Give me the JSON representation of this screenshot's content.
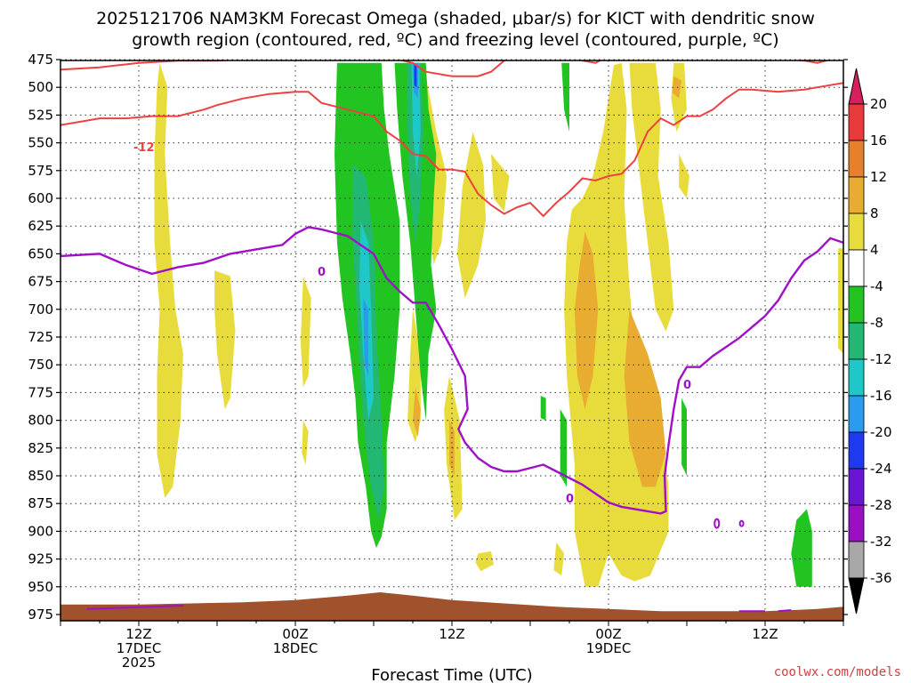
{
  "chart_data": {
    "type": "contour-timeheight",
    "title_line1": "2025121706 NAM3KM Forecast Omega (shaded, μbar/s) for KICT with dendritic snow",
    "title_line2": "growth region (contoured, red, ºC) and freezing level (contoured, purple, ºC)",
    "xlabel": "Forecast Time (UTC)",
    "credit": "coolwx.com/models",
    "y_axis": {
      "units": "hPa",
      "ticks": [
        "475",
        "500",
        "525",
        "550",
        "575",
        "600",
        "625",
        "650",
        "675",
        "700",
        "725",
        "750",
        "775",
        "800",
        "825",
        "850",
        "875",
        "900",
        "925",
        "950",
        "975"
      ],
      "ylim": [
        475,
        980
      ]
    },
    "x_axis": {
      "range_hours": [
        0,
        60
      ],
      "ticks": [
        {
          "hour": 6,
          "lines": [
            "12Z",
            "17DEC",
            "2025"
          ]
        },
        {
          "hour": 18,
          "lines": [
            "00Z",
            "18DEC"
          ]
        },
        {
          "hour": 30,
          "lines": [
            "12Z"
          ]
        },
        {
          "hour": 42,
          "lines": [
            "00Z",
            "19DEC"
          ]
        },
        {
          "hour": 54,
          "lines": [
            "12Z"
          ]
        }
      ]
    },
    "colorbar": {
      "labels": [
        "20",
        "16",
        "12",
        "8",
        "4",
        "-4",
        "-8",
        "-12",
        "-16",
        "-20",
        "-24",
        "-28",
        "-32",
        "-36"
      ],
      "colors": {
        "c20": "#d81f5e",
        "c16": "#e83a3a",
        "c12": "#e6802a",
        "c8": "#e8ac30",
        "c4": "#e8dc3c",
        "white": "#ffffff",
        "g4": "#22c422",
        "g8": "#22b874",
        "g12": "#1ec8c8",
        "g16": "#2a9cf0",
        "g20": "#1e3af0",
        "g24": "#6a14d4",
        "g28": "#9b0ec4",
        "g32": "#a8a8a8",
        "g36": "#000000"
      }
    },
    "contours": {
      "dgz_minus12_label": "-12",
      "freezing_0_label": "0",
      "dgz_color": "#ee4040",
      "freezing_color": "#a010c8",
      "terrain_color": "#a0522d",
      "dgz_upper": [
        [
          0,
          484
        ],
        [
          3,
          482
        ],
        [
          6,
          478
        ],
        [
          9,
          476
        ],
        [
          12,
          476
        ],
        [
          15,
          474
        ],
        [
          18,
          472
        ],
        [
          21,
          470
        ],
        [
          24,
          470
        ],
        [
          27,
          478
        ],
        [
          28,
          486
        ],
        [
          29,
          488
        ],
        [
          30,
          490
        ],
        [
          32,
          490
        ],
        [
          33,
          486
        ],
        [
          34,
          476
        ],
        [
          35,
          472
        ],
        [
          37,
          474
        ],
        [
          39,
          472
        ],
        [
          40,
          476
        ],
        [
          41,
          478
        ],
        [
          42,
          472
        ],
        [
          45,
          470
        ],
        [
          48,
          470
        ],
        [
          51,
          472
        ],
        [
          53,
          470
        ],
        [
          54,
          472
        ],
        [
          55,
          474
        ],
        [
          57,
          476
        ],
        [
          58,
          478
        ],
        [
          60,
          472
        ]
      ],
      "dgz_lower": [
        [
          0,
          534
        ],
        [
          3,
          528
        ],
        [
          5,
          528
        ],
        [
          7,
          526
        ],
        [
          9,
          526
        ],
        [
          11,
          520
        ],
        [
          12,
          516
        ],
        [
          14,
          510
        ],
        [
          16,
          506
        ],
        [
          18,
          504
        ],
        [
          19,
          504
        ],
        [
          20,
          514
        ],
        [
          22,
          520
        ],
        [
          24,
          526
        ],
        [
          25,
          540
        ],
        [
          26,
          548
        ],
        [
          27,
          560
        ],
        [
          28,
          562
        ],
        [
          29,
          574
        ],
        [
          30,
          574
        ],
        [
          31,
          576
        ],
        [
          32,
          596
        ],
        [
          33,
          606
        ],
        [
          34,
          614
        ],
        [
          35,
          608
        ],
        [
          36,
          604
        ],
        [
          37,
          616
        ],
        [
          38,
          604
        ],
        [
          39,
          594
        ],
        [
          40,
          582
        ],
        [
          41,
          584
        ],
        [
          42,
          580
        ],
        [
          43,
          578
        ],
        [
          44,
          566
        ],
        [
          45,
          540
        ],
        [
          46,
          528
        ],
        [
          47,
          534
        ],
        [
          48,
          526
        ],
        [
          49,
          526
        ],
        [
          50,
          520
        ],
        [
          51,
          510
        ],
        [
          52,
          502
        ],
        [
          53,
          502
        ],
        [
          55,
          504
        ],
        [
          57,
          502
        ],
        [
          58,
          500
        ],
        [
          60,
          496
        ]
      ],
      "freezing": [
        [
          0,
          652
        ],
        [
          3,
          650
        ],
        [
          5,
          660
        ],
        [
          7,
          668
        ],
        [
          9,
          662
        ],
        [
          11,
          658
        ],
        [
          13,
          650
        ],
        [
          15,
          646
        ],
        [
          17,
          642
        ],
        [
          18,
          632
        ],
        [
          19,
          626
        ],
        [
          20,
          628
        ],
        [
          22,
          634
        ],
        [
          24,
          650
        ],
        [
          25,
          672
        ],
        [
          26,
          684
        ],
        [
          27,
          694
        ],
        [
          28,
          694
        ],
        [
          29,
          714
        ],
        [
          30,
          736
        ],
        [
          31,
          760
        ],
        [
          31.2,
          790
        ],
        [
          30.5,
          808
        ],
        [
          31,
          820
        ],
        [
          32,
          834
        ],
        [
          33,
          842
        ],
        [
          34,
          846
        ],
        [
          35,
          846
        ],
        [
          37,
          840
        ],
        [
          38,
          846
        ],
        [
          39,
          852
        ],
        [
          40,
          858
        ],
        [
          41,
          866
        ],
        [
          42,
          874
        ],
        [
          43,
          878
        ],
        [
          44,
          880
        ],
        [
          45,
          882
        ],
        [
          46,
          884
        ],
        [
          46.4,
          882
        ],
        [
          46.3,
          850
        ],
        [
          46.6,
          822
        ],
        [
          47,
          790
        ],
        [
          47.4,
          764
        ],
        [
          48,
          752
        ],
        [
          49,
          752
        ],
        [
          50,
          742
        ],
        [
          51,
          734
        ],
        [
          52,
          726
        ],
        [
          53,
          716
        ],
        [
          54,
          706
        ],
        [
          55,
          692
        ],
        [
          56,
          672
        ],
        [
          57,
          656
        ],
        [
          58,
          648
        ],
        [
          59,
          636
        ],
        [
          60,
          640
        ]
      ]
    }
  }
}
